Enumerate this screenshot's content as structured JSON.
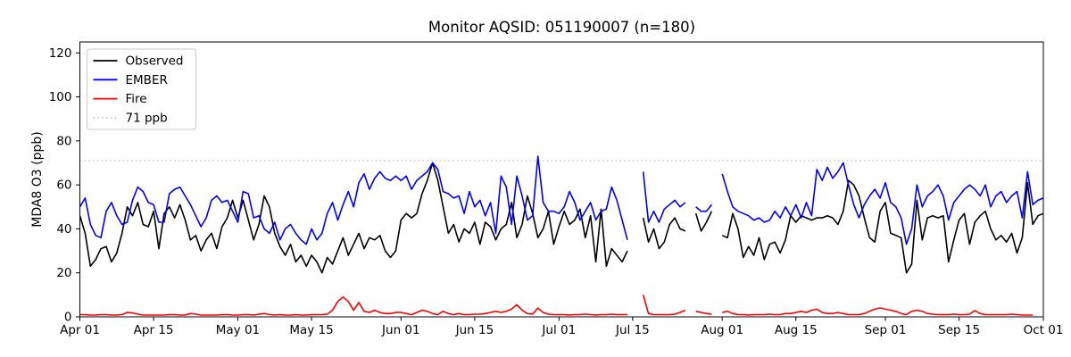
{
  "chart_data": {
    "type": "line",
    "title": "Monitor AQSID: 051190007 (n=180)",
    "xlabel": "",
    "ylabel": "MDA8 O3 (ppb)",
    "x_unit": "days since Apr 01",
    "x_range_days": [
      0,
      183
    ],
    "ylim": [
      0,
      125
    ],
    "yticks": [
      0,
      20,
      40,
      60,
      80,
      100,
      120
    ],
    "xticks": [
      {
        "d": 0,
        "label": "Apr 01"
      },
      {
        "d": 14,
        "label": "Apr 15"
      },
      {
        "d": 30,
        "label": "May 01"
      },
      {
        "d": 44,
        "label": "May 15"
      },
      {
        "d": 61,
        "label": "Jun 01"
      },
      {
        "d": 75,
        "label": "Jun 15"
      },
      {
        "d": 91,
        "label": "Jul 01"
      },
      {
        "d": 105,
        "label": "Jul 15"
      },
      {
        "d": 122,
        "label": "Aug 01"
      },
      {
        "d": 136,
        "label": "Aug 15"
      },
      {
        "d": 153,
        "label": "Sep 01"
      },
      {
        "d": 167,
        "label": "Sep 15"
      },
      {
        "d": 183,
        "label": "Oct 01"
      }
    ],
    "reference_line": {
      "value": 71,
      "label": "71 ppb",
      "color": "#c9c9c9",
      "style": "dotted"
    },
    "legend_position": "upper-left",
    "grid": false,
    "colors": {
      "spine": "#000000",
      "background": "#ffffff",
      "legend_border": "#cccccc"
    },
    "series": [
      {
        "name": "Observed",
        "color": "#000000",
        "values": [
          46,
          38,
          23,
          26,
          31,
          32,
          25,
          29,
          38,
          50,
          46,
          52,
          42,
          41,
          48,
          31,
          47,
          50,
          45,
          51,
          44,
          35,
          37,
          30,
          35,
          38,
          31,
          41,
          45,
          53,
          45,
          53,
          44,
          35,
          42,
          55,
          50,
          38,
          32,
          28,
          33,
          25,
          28,
          23,
          28,
          25,
          20,
          27,
          24,
          30,
          36,
          28,
          33,
          38,
          31,
          36,
          35,
          37,
          30,
          27,
          30,
          44,
          47,
          45,
          47,
          56,
          62,
          70,
          62,
          50,
          38,
          42,
          34,
          40,
          38,
          43,
          33,
          43,
          41,
          35,
          40,
          42,
          52,
          36,
          42,
          55,
          47,
          36,
          40,
          48,
          33,
          41,
          48,
          42,
          44,
          49,
          36,
          46,
          25,
          49,
          23,
          31,
          28,
          25,
          30,
          null,
          null,
          45,
          34,
          40,
          31,
          34,
          42,
          45,
          40,
          39,
          null,
          47,
          39,
          43,
          48,
          null,
          37,
          36,
          47,
          40,
          27,
          32,
          28,
          36,
          26,
          33,
          34,
          29,
          35,
          46,
          43,
          46,
          45,
          44,
          45,
          45,
          46,
          45,
          42,
          48,
          62,
          60,
          55,
          45,
          36,
          34,
          48,
          52,
          38,
          37,
          36,
          20,
          24,
          53,
          35,
          45,
          46,
          45,
          46,
          25,
          35,
          44,
          47,
          33,
          43,
          46,
          48,
          40,
          35,
          37,
          34,
          38,
          29,
          36,
          61,
          42,
          46,
          47
        ]
      },
      {
        "name": "EMBER",
        "color": "#0000ff",
        "values": [
          50,
          54,
          42,
          37,
          36,
          48,
          52,
          46,
          42,
          43,
          53,
          59,
          57,
          52,
          51,
          43,
          43,
          56,
          58,
          59,
          55,
          51,
          46,
          41,
          45,
          53,
          55,
          52,
          53,
          48,
          43,
          57,
          56,
          45,
          46,
          40,
          38,
          43,
          35,
          40,
          42,
          38,
          35,
          33,
          40,
          35,
          38,
          47,
          52,
          44,
          51,
          57,
          50,
          61,
          65,
          58,
          63,
          66,
          63,
          62,
          64,
          62,
          64,
          58,
          62,
          64,
          66,
          70,
          67,
          57,
          56,
          54,
          55,
          47,
          57,
          50,
          53,
          46,
          52,
          38,
          64,
          59,
          42,
          64,
          55,
          44,
          46,
          73,
          52,
          48,
          48,
          47,
          50,
          57,
          52,
          44,
          48,
          52,
          44,
          48,
          49,
          59,
          53,
          44,
          35,
          null,
          null,
          66,
          43,
          48,
          43,
          49,
          51,
          53,
          50,
          52,
          null,
          50,
          48,
          48,
          51,
          null,
          65,
          57,
          50,
          48,
          47,
          46,
          44,
          45,
          43,
          44,
          48,
          45,
          50,
          46,
          51,
          45,
          52,
          46,
          67,
          62,
          68,
          63,
          66,
          70,
          60,
          51,
          45,
          51,
          55,
          58,
          54,
          61,
          52,
          50,
          45,
          33,
          40,
          60,
          50,
          55,
          57,
          60,
          55,
          44,
          52,
          55,
          58,
          60,
          58,
          55,
          60,
          50,
          55,
          57,
          52,
          55,
          57,
          45,
          66,
          51,
          53,
          54
        ]
      },
      {
        "name": "Fire",
        "color": "#ff0000",
        "values": [
          1,
          1,
          0.8,
          0.8,
          1,
          1,
          0.8,
          0.8,
          1,
          2,
          1.8,
          1.2,
          0.8,
          0.8,
          0.8,
          0.8,
          0.8,
          1,
          1,
          0.8,
          0.8,
          1.5,
          1.2,
          0.8,
          0.8,
          0.8,
          0.8,
          1,
          1,
          0.8,
          0.8,
          1,
          1,
          0.8,
          1.2,
          1.5,
          1,
          0.8,
          1,
          0.8,
          0.8,
          1,
          0.8,
          0.8,
          1,
          1,
          1,
          1.2,
          3,
          7,
          9,
          7,
          3,
          6.5,
          2.5,
          2,
          3,
          2,
          1.5,
          1.5,
          2,
          2,
          1.5,
          1,
          2,
          3,
          2.5,
          1.5,
          1,
          2.5,
          1.5,
          1,
          1.5,
          1,
          1,
          1.2,
          1.2,
          1.5,
          2,
          2.5,
          2,
          2.5,
          3.5,
          5.5,
          3,
          1.5,
          1.2,
          4,
          2,
          1.2,
          1,
          1,
          1,
          0.8,
          1,
          1,
          1.2,
          1,
          0.8,
          1,
          1,
          1.2,
          1,
          1,
          1,
          null,
          null,
          10,
          1.5,
          1,
          1,
          1,
          1,
          1.2,
          2,
          3,
          null,
          2.5,
          2,
          1.5,
          1.2,
          null,
          2,
          2.5,
          1.5,
          1,
          1,
          0.8,
          1,
          1,
          1,
          1.2,
          1,
          1,
          1.5,
          1.5,
          2,
          2.5,
          2,
          3,
          3.5,
          2,
          1.5,
          1.5,
          2,
          1.5,
          1,
          1,
          1,
          1.5,
          2.5,
          3.5,
          4,
          3.5,
          3,
          2.5,
          1.5,
          1,
          2.5,
          3,
          2.5,
          1.5,
          1.2,
          1,
          1,
          1,
          1.2,
          1,
          1,
          1.2,
          2.8,
          1.5,
          1,
          1,
          1,
          1,
          1,
          1.2,
          1,
          0.8,
          0.8,
          0.8,
          null,
          null
        ]
      }
    ],
    "legend_entries": [
      "Observed",
      "EMBER",
      "Fire",
      "71 ppb"
    ]
  }
}
